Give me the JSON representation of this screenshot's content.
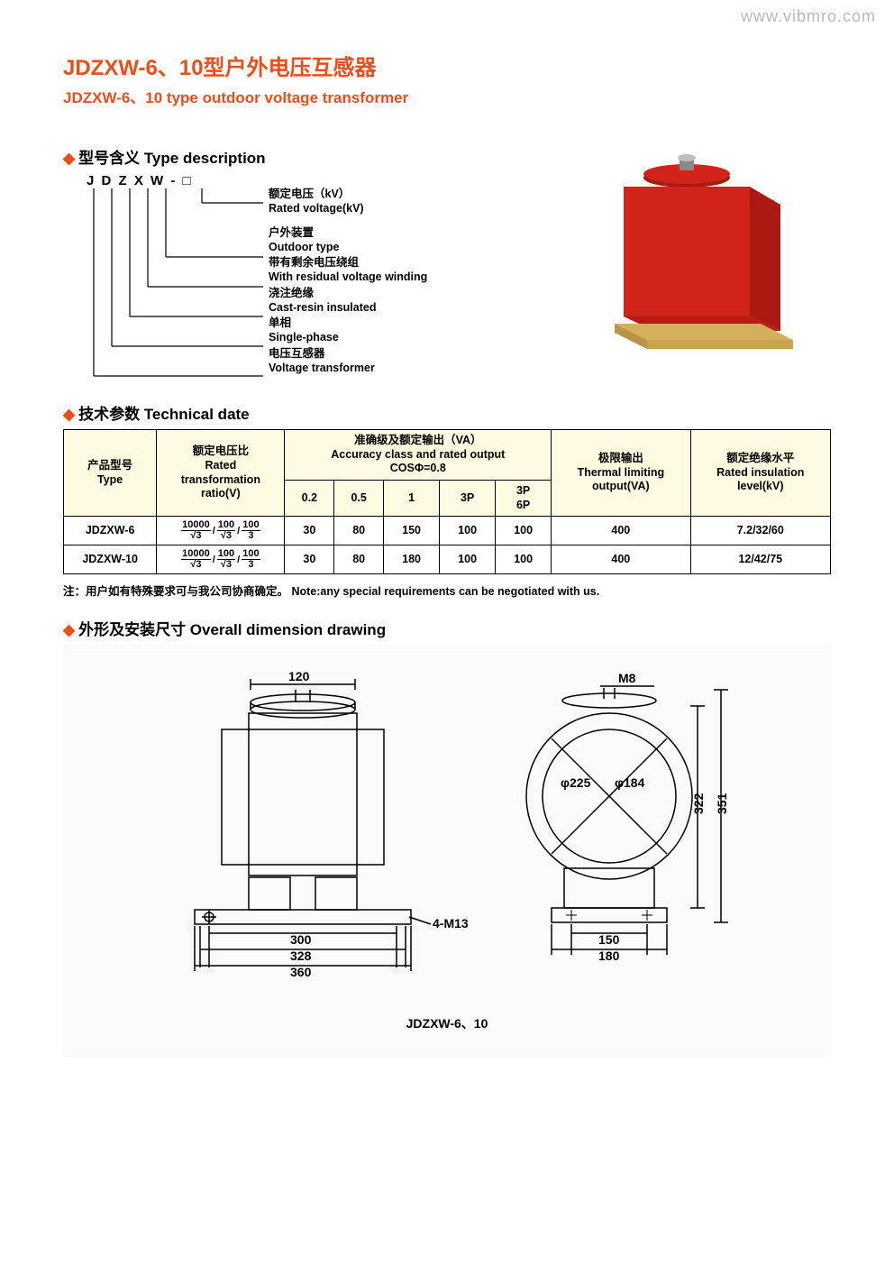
{
  "watermark": "www.vibmro.com",
  "title_cn": "JDZXW-6、10型户外电压互感器",
  "title_en": "JDZXW-6、10  type outdoor voltage  transformer",
  "section_type_desc": "型号含义 Type description",
  "section_tech": "技术参数 Technical date",
  "section_dim": "外形及安装尺寸 Overall dimension drawing",
  "code_letters": "J  D  Z  X  W  -  □",
  "type_desc": {
    "items": [
      {
        "cn": "额定电压（kV）",
        "en": "Rated voltage(kV)"
      },
      {
        "cn": "户外装置",
        "en": "Outdoor type"
      },
      {
        "cn": "带有剩余电压绕组",
        "en": "With residual voltage winding"
      },
      {
        "cn": "浇注绝缘",
        "en": "Cast-resin insulated"
      },
      {
        "cn": "单相",
        "en": "Single-phase"
      },
      {
        "cn": "电压互感器",
        "en": "Voltage transformer"
      }
    ]
  },
  "tech_table": {
    "headers": {
      "type": "产品型号\nType",
      "ratio": "额定电压比\nRated\ntransformation\nratio(V)",
      "accuracy": "准确级及额定输出（VA）\nAccuracy class and rated output\nCOSΦ=0.8",
      "acc_cols": [
        "0.2",
        "0.5",
        "1",
        "3P",
        "3P\n6P"
      ],
      "thermal": "极限输出\nThermal limiting\noutput(VA)",
      "insulation": "额定绝缘水平\nRated insulation\nlevel(kV)"
    },
    "ratio_parts": {
      "p1n": "10000",
      "p1d": "√3",
      "p2n": "100",
      "p2d": "√3",
      "p3n": "100",
      "p3d": "3"
    },
    "rows": [
      {
        "type": "JDZXW-6",
        "acc": [
          "30",
          "80",
          "150",
          "100",
          "100"
        ],
        "thermal": "400",
        "ins": "7.2/32/60"
      },
      {
        "type": "JDZXW-10",
        "acc": [
          "30",
          "80",
          "180",
          "100",
          "100"
        ],
        "thermal": "400",
        "ins": "12/42/75"
      }
    ]
  },
  "note": "注：用户如有特殊要求可与我公司协商确定。   Note:any special requirements can be negotiated with us.",
  "dimensions": {
    "caption": "JDZXW-6、10",
    "labels": {
      "top_w": "120",
      "m8": "M8",
      "phi225": "φ225",
      "phi184": "φ184",
      "h322": "322",
      "h351": "351",
      "w300": "300",
      "w328": "328",
      "w360": "360",
      "hole": "4-M13",
      "side_w150": "150",
      "side_w180": "180"
    },
    "colors": {
      "stroke": "#000000",
      "bg": "#fafafa"
    }
  },
  "product_colors": {
    "body": "#d0241a",
    "shade": "#aa1a12",
    "base": "#d4b05a",
    "cap": "#8a8a8a"
  }
}
